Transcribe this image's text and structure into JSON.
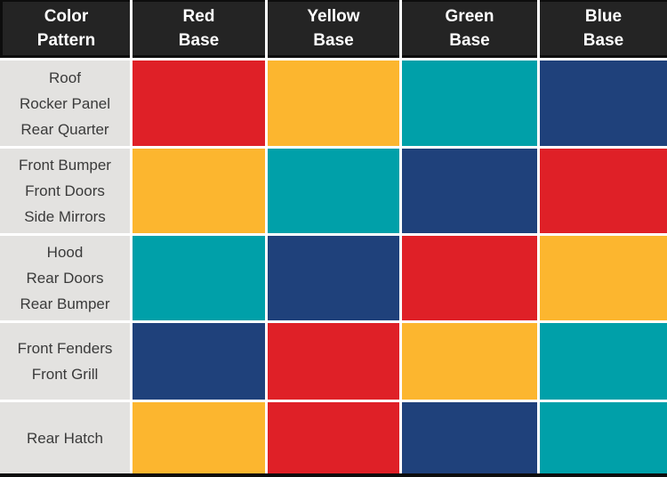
{
  "palette": {
    "red": "#df2027",
    "yellow": "#fcb62f",
    "teal": "#00a0a9",
    "navy": "#1f417b",
    "header_bg": "#242424",
    "header_text": "#ffffff",
    "label_bg": "#e3e2e0",
    "label_text": "#3a3a3a",
    "grid_line": "#ffffff",
    "frame": "#0d0d0d"
  },
  "header": {
    "pattern_col": {
      "line1": "Color",
      "line2": "Pattern"
    },
    "base_cols": [
      {
        "line1": "Red",
        "line2": "Base"
      },
      {
        "line1": "Yellow",
        "line2": "Base"
      },
      {
        "line1": "Green",
        "line2": "Base"
      },
      {
        "line1": "Blue",
        "line2": "Base"
      }
    ]
  },
  "rows": [
    {
      "label_lines": [
        "Roof",
        "Rocker Panel",
        "Rear Quarter"
      ],
      "cells": [
        "red",
        "yellow",
        "teal",
        "navy"
      ]
    },
    {
      "label_lines": [
        "Front Bumper",
        "Front Doors",
        "Side Mirrors"
      ],
      "cells": [
        "yellow",
        "teal",
        "navy",
        "red"
      ]
    },
    {
      "label_lines": [
        "Hood",
        "Rear Doors",
        "Rear Bumper"
      ],
      "cells": [
        "teal",
        "navy",
        "red",
        "yellow"
      ]
    },
    {
      "label_lines": [
        "Front Fenders",
        "Front Grill"
      ],
      "cells": [
        "navy",
        "red",
        "yellow",
        "teal"
      ]
    },
    {
      "label_lines": [
        "Rear Hatch"
      ],
      "cells": [
        "yellow",
        "red",
        "navy",
        "teal"
      ]
    }
  ],
  "chart_data": {
    "type": "table",
    "title": "Color Pattern",
    "columns": [
      "Color Pattern",
      "Red Base",
      "Yellow Base",
      "Green Base",
      "Blue Base"
    ],
    "rows": [
      {
        "pattern": "Roof / Rocker Panel / Rear Quarter",
        "red_base": "red",
        "yellow_base": "yellow",
        "green_base": "teal",
        "blue_base": "navy"
      },
      {
        "pattern": "Front Bumper / Front Doors / Side Mirrors",
        "red_base": "yellow",
        "yellow_base": "teal",
        "green_base": "navy",
        "blue_base": "red"
      },
      {
        "pattern": "Hood / Rear Doors / Rear Bumper",
        "red_base": "teal",
        "yellow_base": "navy",
        "green_base": "red",
        "blue_base": "yellow"
      },
      {
        "pattern": "Front Fenders / Front Grill",
        "red_base": "navy",
        "yellow_base": "red",
        "green_base": "yellow",
        "blue_base": "teal"
      },
      {
        "pattern": "Rear Hatch",
        "red_base": "yellow",
        "yellow_base": "red",
        "green_base": "navy",
        "blue_base": "teal"
      }
    ],
    "swatch_hex": {
      "red": "#df2027",
      "yellow": "#fcb62f",
      "teal": "#00a0a9",
      "navy": "#1f417b"
    },
    "layout": "header row dark with white bold text; first column light gray labels; body cells are solid color swatches separated by white grid lines"
  }
}
